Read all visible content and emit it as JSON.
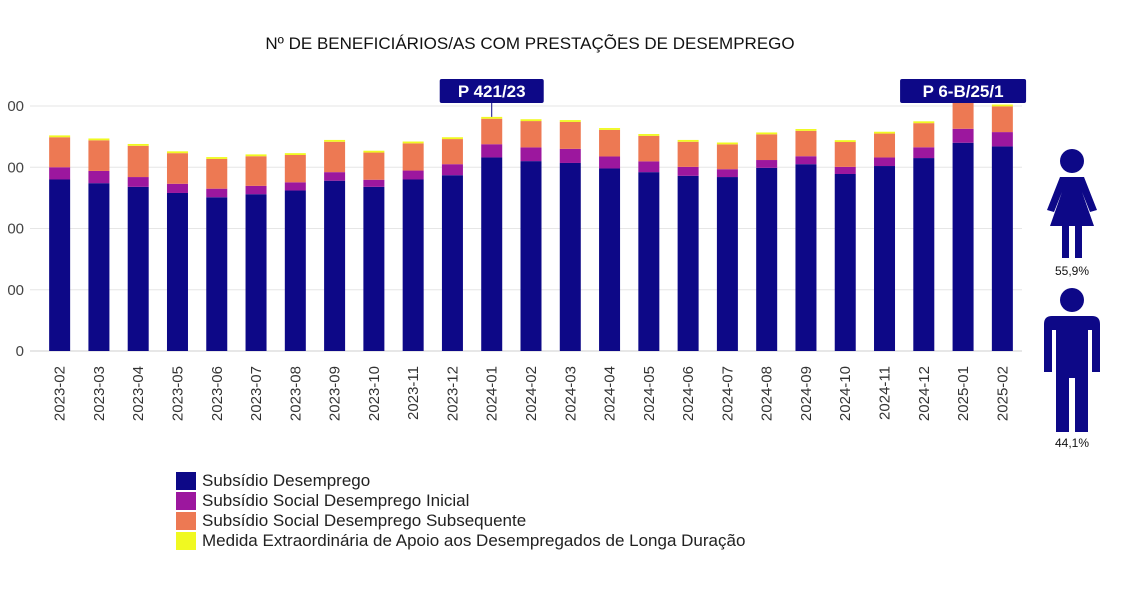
{
  "chart_data": {
    "type": "bar",
    "stacked": true,
    "title": "Nº DE BENEFICIÁRIOS/AS COM PRESTAÇÕES DE DESEMPREGO",
    "xlabel": "",
    "ylabel": "",
    "y_tick_labels": [
      "0",
      "00",
      "00",
      "00",
      "00"
    ],
    "y_tick_values": [
      0,
      50000,
      100000,
      150000,
      200000
    ],
    "ylim": [
      0,
      230000
    ],
    "grid": true,
    "legend_position": "bottom-left",
    "categories": [
      "2023-02",
      "2023-03",
      "2023-04",
      "2023-05",
      "2023-06",
      "2023-07",
      "2023-08",
      "2023-09",
      "2023-10",
      "2023-11",
      "2023-12",
      "2024-01",
      "2024-02",
      "2024-03",
      "2024-04",
      "2024-05",
      "2024-06",
      "2024-07",
      "2024-08",
      "2024-09",
      "2024-10",
      "2024-11",
      "2024-12",
      "2025-01",
      "2025-02"
    ],
    "series": [
      {
        "name": "Subsídio Desemprego",
        "color": "#0d0887",
        "values": [
          140000,
          137000,
          134000,
          129000,
          125500,
          128000,
          131000,
          139000,
          134000,
          140000,
          143500,
          158000,
          155000,
          153500,
          149000,
          146000,
          143000,
          142000,
          149500,
          152500,
          144500,
          151000,
          157500,
          170000,
          167000
        ]
      },
      {
        "name": "Subsídio Social Desemprego Inicial",
        "color": "#9c179e",
        "values": [
          10000,
          10000,
          8000,
          7500,
          7000,
          6800,
          6700,
          7000,
          5800,
          7300,
          9000,
          10800,
          11200,
          11500,
          9800,
          8800,
          7300,
          6400,
          6400,
          6500,
          5800,
          7000,
          8800,
          11400,
          11700
        ]
      },
      {
        "name": "Subsídio Social Desemprego Subsequente",
        "color": "#ed7953",
        "values": [
          24500,
          25000,
          25500,
          25000,
          24300,
          24200,
          22300,
          24800,
          22200,
          22200,
          20500,
          20800,
          21500,
          22000,
          21700,
          20800,
          20500,
          20300,
          21000,
          20700,
          20300,
          19500,
          19700,
          22700,
          21000
        ]
      },
      {
        "name": "Medida Extraordinária de Apoio aos Desempregados de Longa Duração",
        "color": "#f0f921",
        "values": [
          1500,
          1500,
          1500,
          1500,
          1500,
          1500,
          1500,
          1500,
          1500,
          1500,
          1500,
          1500,
          1500,
          1500,
          1500,
          1500,
          1500,
          1500,
          1500,
          1500,
          1500,
          1500,
          1500,
          1500,
          1500
        ]
      }
    ],
    "annotations": [
      {
        "label": "P 421/23",
        "category": "2024-01"
      },
      {
        "label": "P 6-B/25/1",
        "category": "2025-01"
      }
    ],
    "gender": {
      "female_pct": "55,9%",
      "male_pct": "44,1%",
      "color": "#0d0887"
    }
  }
}
